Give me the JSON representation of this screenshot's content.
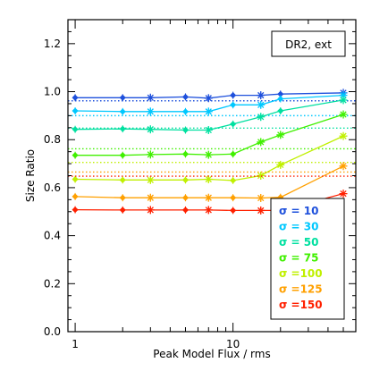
{
  "chart_data": {
    "type": "line",
    "xlabel": "Peak Model Flux / rms",
    "ylabel": "Size Ratio",
    "xscale": "log",
    "xlim": [
      0.9,
      60
    ],
    "ylim": [
      0.0,
      1.3
    ],
    "x_tick_labels": [
      "1",
      "10"
    ],
    "y_tick_labels": [
      "0.0",
      "0.2",
      "0.4",
      "0.6",
      "0.8",
      "1.0",
      "1.2"
    ],
    "annotation": "DR2, ext",
    "legend_position": "bottom-right",
    "grid": false,
    "x": [
      1,
      2,
      3,
      5,
      7,
      10,
      15,
      20,
      50
    ],
    "series": [
      {
        "name": "σ = 10",
        "color": "#1e50dc",
        "values": [
          0.975,
          0.975,
          0.975,
          0.978,
          0.973,
          0.985,
          0.985,
          0.99,
          0.995
        ],
        "ref": 0.962,
        "marker": "diamond"
      },
      {
        "name": "σ = 30",
        "color": "#00c8ff",
        "values": [
          0.92,
          0.917,
          0.917,
          0.917,
          0.917,
          0.945,
          0.945,
          0.97,
          0.985
        ],
        "ref": 0.9,
        "marker": "diamond"
      },
      {
        "name": "σ = 50",
        "color": "#00e0a0",
        "values": [
          0.843,
          0.845,
          0.843,
          0.84,
          0.84,
          0.865,
          0.895,
          0.92,
          0.965
        ],
        "ref": 0.848,
        "marker": "diamond"
      },
      {
        "name": "σ = 75",
        "color": "#40f000",
        "values": [
          0.735,
          0.735,
          0.738,
          0.74,
          0.737,
          0.74,
          0.79,
          0.82,
          0.905
        ],
        "ref": 0.762,
        "marker": "star"
      },
      {
        "name": "σ =100",
        "color": "#c0f000",
        "values": [
          0.635,
          0.632,
          0.632,
          0.632,
          0.635,
          0.63,
          0.65,
          0.695,
          0.815
        ],
        "ref": 0.705,
        "marker": "star"
      },
      {
        "name": "σ =125",
        "color": "#ffa000",
        "values": [
          0.563,
          0.558,
          0.558,
          0.558,
          0.558,
          0.558,
          0.557,
          0.56,
          0.69
        ],
        "ref": 0.665,
        "marker": "diamond"
      },
      {
        "name": "σ =150",
        "color": "#ff2000",
        "values": [
          0.508,
          0.507,
          0.507,
          0.507,
          0.507,
          0.505,
          0.505,
          0.505,
          0.575
        ],
        "ref": 0.648,
        "marker": "diamond"
      }
    ]
  }
}
